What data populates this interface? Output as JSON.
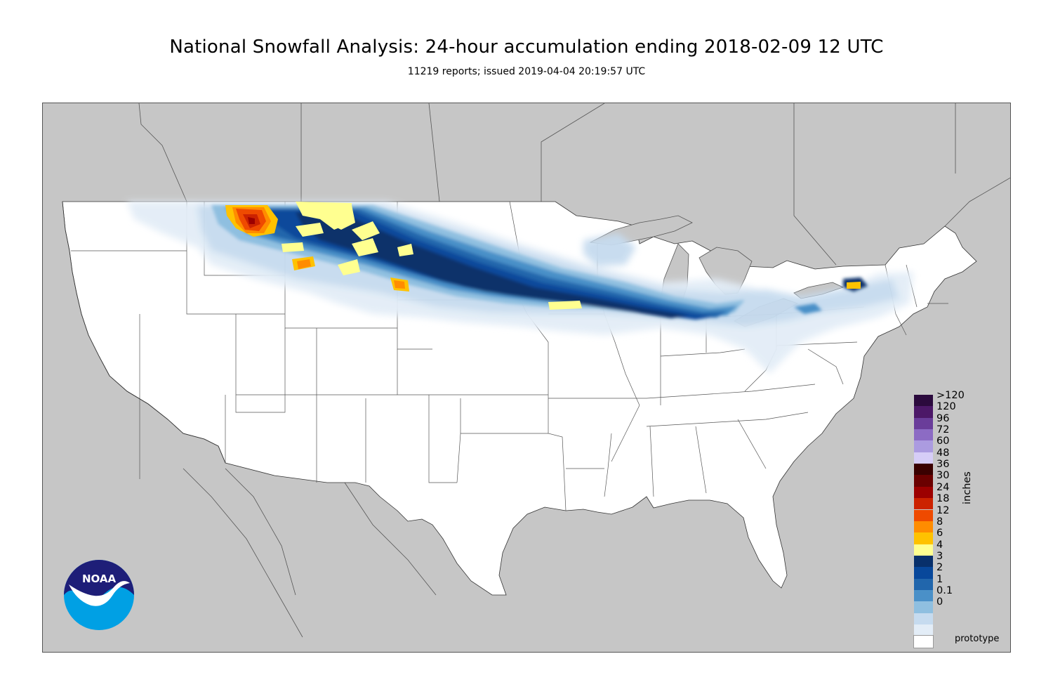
{
  "title": "National Snowfall Analysis: 24-hour accumulation ending 2018-02-09 12 UTC",
  "subtitle": "11219 reports; issued 2019-04-04 20:19:57 UTC",
  "footer_note": "prototype",
  "logo": {
    "text": "NOAA",
    "icon": "noaa-logo"
  },
  "map": {
    "region": "contiguous-united-states",
    "background_color": "#c6c6c6",
    "land_color": "#ffffff"
  },
  "legend": {
    "unit": "inches",
    "levels": [
      {
        "label": ">120",
        "color": "#2b0a3d"
      },
      {
        "label": "120",
        "color": "#4c1868"
      },
      {
        "label": "96",
        "color": "#6a3d9a"
      },
      {
        "label": "72",
        "color": "#8c6bc4"
      },
      {
        "label": "60",
        "color": "#ab9be0"
      },
      {
        "label": "48",
        "color": "#d6cdf7"
      },
      {
        "label": "36",
        "color": "#3a0000"
      },
      {
        "label": "30",
        "color": "#6b0000"
      },
      {
        "label": "24",
        "color": "#9c0000"
      },
      {
        "label": "18",
        "color": "#cc2200"
      },
      {
        "label": "12",
        "color": "#ef4a00"
      },
      {
        "label": "8",
        "color": "#ff8c00"
      },
      {
        "label": "6",
        "color": "#ffc200"
      },
      {
        "label": "4",
        "color": "#ffff90"
      },
      {
        "label": "3",
        "color": "#08306b"
      },
      {
        "label": "2",
        "color": "#08489b"
      },
      {
        "label": "1",
        "color": "#2166ac"
      },
      {
        "label": "0.1",
        "color": "#4a90c8"
      },
      {
        "label": "0",
        "color": "#8fbfe0"
      },
      {
        "label": "",
        "color": "#c6dbef"
      },
      {
        "label": "",
        "color": "#e3edf7"
      },
      {
        "label": "",
        "color": "#ffffff"
      }
    ]
  }
}
